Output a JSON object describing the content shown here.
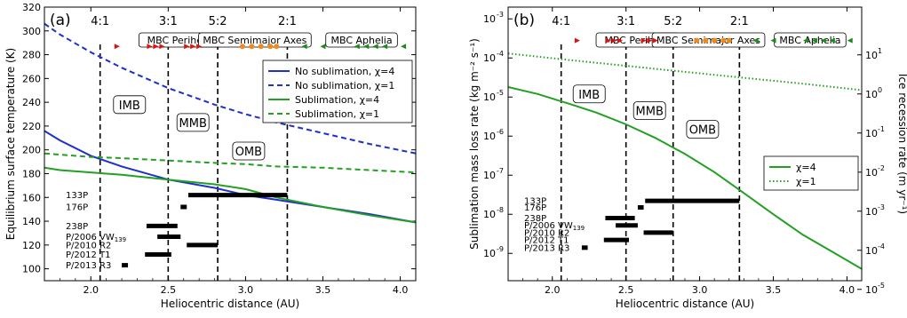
{
  "figure": {
    "panels": [
      "(a)",
      "(b)"
    ]
  },
  "chart_data": [
    {
      "type": "line",
      "panel": "(a)",
      "xlabel": "Heliocentric distance (AU)",
      "ylabel": "Equilibrium surface temperature (K)",
      "xlim": [
        1.7,
        4.1
      ],
      "ylim": [
        90,
        320
      ],
      "xticks": [
        "2.0",
        "2.5",
        "3.0",
        "3.5",
        "4.0"
      ],
      "xtick_values": [
        2.0,
        2.5,
        3.0,
        3.5,
        4.0
      ],
      "yticks": [
        "100",
        "120",
        "140",
        "160",
        "180",
        "200",
        "220",
        "240",
        "260",
        "280",
        "300",
        "320"
      ],
      "ytick_values": [
        100,
        120,
        140,
        160,
        180,
        200,
        220,
        240,
        260,
        280,
        300,
        320
      ],
      "legend_position": "right",
      "series": [
        {
          "name": "No sublimation, χ=4",
          "color": "#1f2fcc",
          "dash": "solid",
          "x": [
            1.7,
            1.8,
            2.0,
            2.2,
            2.5,
            2.8,
            3.0,
            3.2,
            3.5,
            3.8,
            4.1
          ],
          "y": [
            216,
            208,
            195,
            186,
            175,
            168,
            162,
            158,
            152,
            146,
            139
          ]
        },
        {
          "name": "No sublimation, χ=1",
          "color": "#1f2fcc",
          "dash": "dashed",
          "x": [
            1.7,
            1.8,
            2.0,
            2.2,
            2.5,
            2.8,
            3.0,
            3.2,
            3.5,
            3.8,
            4.1
          ],
          "y": [
            306,
            297,
            282,
            269,
            252,
            238,
            230,
            223,
            214,
            205,
            197
          ]
        },
        {
          "name": "Sublimation, χ=4",
          "color": "#22a022",
          "dash": "solid",
          "x": [
            1.7,
            1.8,
            2.0,
            2.2,
            2.5,
            2.8,
            3.0,
            3.2,
            3.5,
            3.8,
            4.1
          ],
          "y": [
            185,
            183,
            181,
            179,
            175,
            171,
            167,
            160,
            152,
            145,
            139
          ]
        },
        {
          "name": "Sublimation, χ=1",
          "color": "#22a022",
          "dash": "dashed",
          "x": [
            1.7,
            1.8,
            2.0,
            2.2,
            2.5,
            2.8,
            3.0,
            3.2,
            3.5,
            3.8,
            4.1
          ],
          "y": [
            197,
            196,
            194,
            193,
            191,
            189,
            188,
            186,
            185,
            183,
            181
          ]
        }
      ],
      "resonances": [
        {
          "label": "4:1",
          "x": 2.06
        },
        {
          "label": "3:1",
          "x": 2.5
        },
        {
          "label": "5:2",
          "x": 2.82
        },
        {
          "label": "2:1",
          "x": 3.27
        }
      ],
      "category_labels": [
        {
          "label": "MBC Perihelia",
          "x": 2.58
        },
        {
          "label": "MBC Semimajor Axes",
          "x": 3.06
        },
        {
          "label": "MBC Aphelia",
          "x": 3.75
        }
      ],
      "regions": [
        {
          "label": "IMB",
          "x": 2.25,
          "y": 238
        },
        {
          "label": "MMB",
          "x": 2.66,
          "y": 223
        },
        {
          "label": "OMB",
          "x": 3.02,
          "y": 199
        }
      ],
      "perihelia_markers": {
        "color": "#e01010",
        "x": [
          2.17,
          2.38,
          2.42,
          2.46,
          2.62,
          2.66,
          2.7
        ],
        "y": 287
      },
      "semimajor_markers": {
        "color": "#f08a1a",
        "x": [
          2.98,
          3.04,
          3.1,
          3.16,
          3.2
        ],
        "y": 287
      },
      "aphelia_markers": {
        "color": "#1a8a1a",
        "x": [
          3.38,
          3.5,
          3.72,
          3.78,
          3.84,
          3.9,
          4.02
        ],
        "y": 287
      },
      "objects": [
        {
          "label": "133P",
          "xmin": 2.63,
          "xmax": 3.27,
          "y": 162
        },
        {
          "label": "176P",
          "xmin": 2.58,
          "xmax": 2.62,
          "y": 152
        },
        {
          "label": "238P",
          "xmin": 2.36,
          "xmax": 2.56,
          "y": 136
        },
        {
          "label": "P/2006 VW",
          "sub": "139",
          "xmin": 2.43,
          "xmax": 2.58,
          "y": 127
        },
        {
          "label": "P/2010 R2",
          "xmin": 2.62,
          "xmax": 2.82,
          "y": 120
        },
        {
          "label": "P/2012 T1",
          "xmin": 2.35,
          "xmax": 2.52,
          "y": 112
        },
        {
          "label": "P/2013 R3",
          "xmin": 2.2,
          "xmax": 2.24,
          "y": 103
        }
      ]
    },
    {
      "type": "line",
      "panel": "(b)",
      "xlabel": "Heliocentric distance (AU)",
      "ylabel": "Sublimation mass loss rate (kg m⁻² s⁻¹)",
      "ylabel_right": "Ice recession rate (m yr⁻¹)",
      "yscale": "log",
      "xlim": [
        1.7,
        4.1
      ],
      "ylim": [
        2e-10,
        0.002
      ],
      "xticks": [
        "2.0",
        "2.5",
        "3.0",
        "3.5",
        "4.0"
      ],
      "xtick_values": [
        2.0,
        2.5,
        3.0,
        3.5,
        4.0
      ],
      "ytick_exponents": [
        -3,
        -4,
        -5,
        -6,
        -7,
        -8,
        -9
      ],
      "ytick_labels": [
        "10",
        "10",
        "10",
        "10",
        "10",
        "10",
        "10"
      ],
      "yright_exponents": [
        1,
        0,
        -1,
        -2,
        -3,
        -4,
        -5
      ],
      "yright_values": [
        0.00012,
        1.2e-05,
        1.2e-06,
        1.2e-07,
        1.2e-08,
        1.2e-09,
        1.2e-10
      ],
      "yright_labels": [
        "10",
        "10",
        "10",
        "10",
        "10",
        "10",
        "10"
      ],
      "legend_position": "right",
      "series": [
        {
          "name": "χ=4",
          "color": "#22a022",
          "dash": "solid",
          "x": [
            1.7,
            1.9,
            2.1,
            2.3,
            2.5,
            2.7,
            2.9,
            3.1,
            3.3,
            3.5,
            3.7,
            3.9,
            4.1
          ],
          "y": [
            1.8e-05,
            1.2e-05,
            7e-06,
            4e-06,
            2e-06,
            9e-07,
            3.5e-07,
            1.2e-07,
            3.5e-08,
            1e-08,
            3e-09,
            1.1e-09,
            4e-10
          ]
        },
        {
          "name": "χ=1",
          "color": "#22a022",
          "dash": "dotted",
          "x": [
            1.7,
            2.1,
            2.5,
            2.9,
            3.3,
            3.7,
            4.1
          ],
          "y": [
            0.00013,
            9e-05,
            6.3e-05,
            4.4e-05,
            3.1e-05,
            2.2e-05,
            1.5e-05
          ]
        }
      ],
      "resonances": [
        {
          "label": "4:1",
          "x": 2.06
        },
        {
          "label": "3:1",
          "x": 2.5
        },
        {
          "label": "5:2",
          "x": 2.82
        },
        {
          "label": "2:1",
          "x": 3.27
        }
      ],
      "category_labels": [
        {
          "label": "MBC Perihelia",
          "x": 2.58
        },
        {
          "label": "MBC Semimajor Axes",
          "x": 3.06
        },
        {
          "label": "MBC Aphelia",
          "x": 3.75
        }
      ],
      "regions": [
        {
          "label": "IMB",
          "x": 2.25,
          "y": 1.2e-05
        },
        {
          "label": "MMB",
          "x": 2.66,
          "y": 4.5e-06
        },
        {
          "label": "OMB",
          "x": 3.02,
          "y": 1.5e-06
        }
      ],
      "perihelia_markers": {
        "color": "#e01010",
        "x": [
          2.17,
          2.38,
          2.42,
          2.46,
          2.62,
          2.66,
          2.7
        ],
        "y": 0.00028
      },
      "semimajor_markers": {
        "color": "#f08a1a",
        "x": [
          2.98,
          3.04,
          3.1,
          3.16,
          3.2
        ],
        "y": 0.00028
      },
      "aphelia_markers": {
        "color": "#1a8a1a",
        "x": [
          3.38,
          3.5,
          3.72,
          3.78,
          3.84,
          3.9,
          4.02
        ],
        "y": 0.00028
      },
      "objects": [
        {
          "label": "133P",
          "xmin": 2.63,
          "xmax": 3.27,
          "y": 2.2e-08
        },
        {
          "label": "176P",
          "xmin": 2.58,
          "xmax": 2.62,
          "y": 1.5e-08
        },
        {
          "label": "238P",
          "xmin": 2.36,
          "xmax": 2.56,
          "y": 8e-09
        },
        {
          "label": "P/2006 VW",
          "sub": "139",
          "xmin": 2.43,
          "xmax": 2.58,
          "y": 5.2e-09
        },
        {
          "label": "P/2010 R2",
          "xmin": 2.62,
          "xmax": 2.82,
          "y": 3.4e-09
        },
        {
          "label": "P/2012 T1",
          "xmin": 2.35,
          "xmax": 2.52,
          "y": 2.2e-09
        },
        {
          "label": "P/2013 R3",
          "xmin": 2.2,
          "xmax": 2.24,
          "y": 1.4e-09
        }
      ]
    }
  ]
}
